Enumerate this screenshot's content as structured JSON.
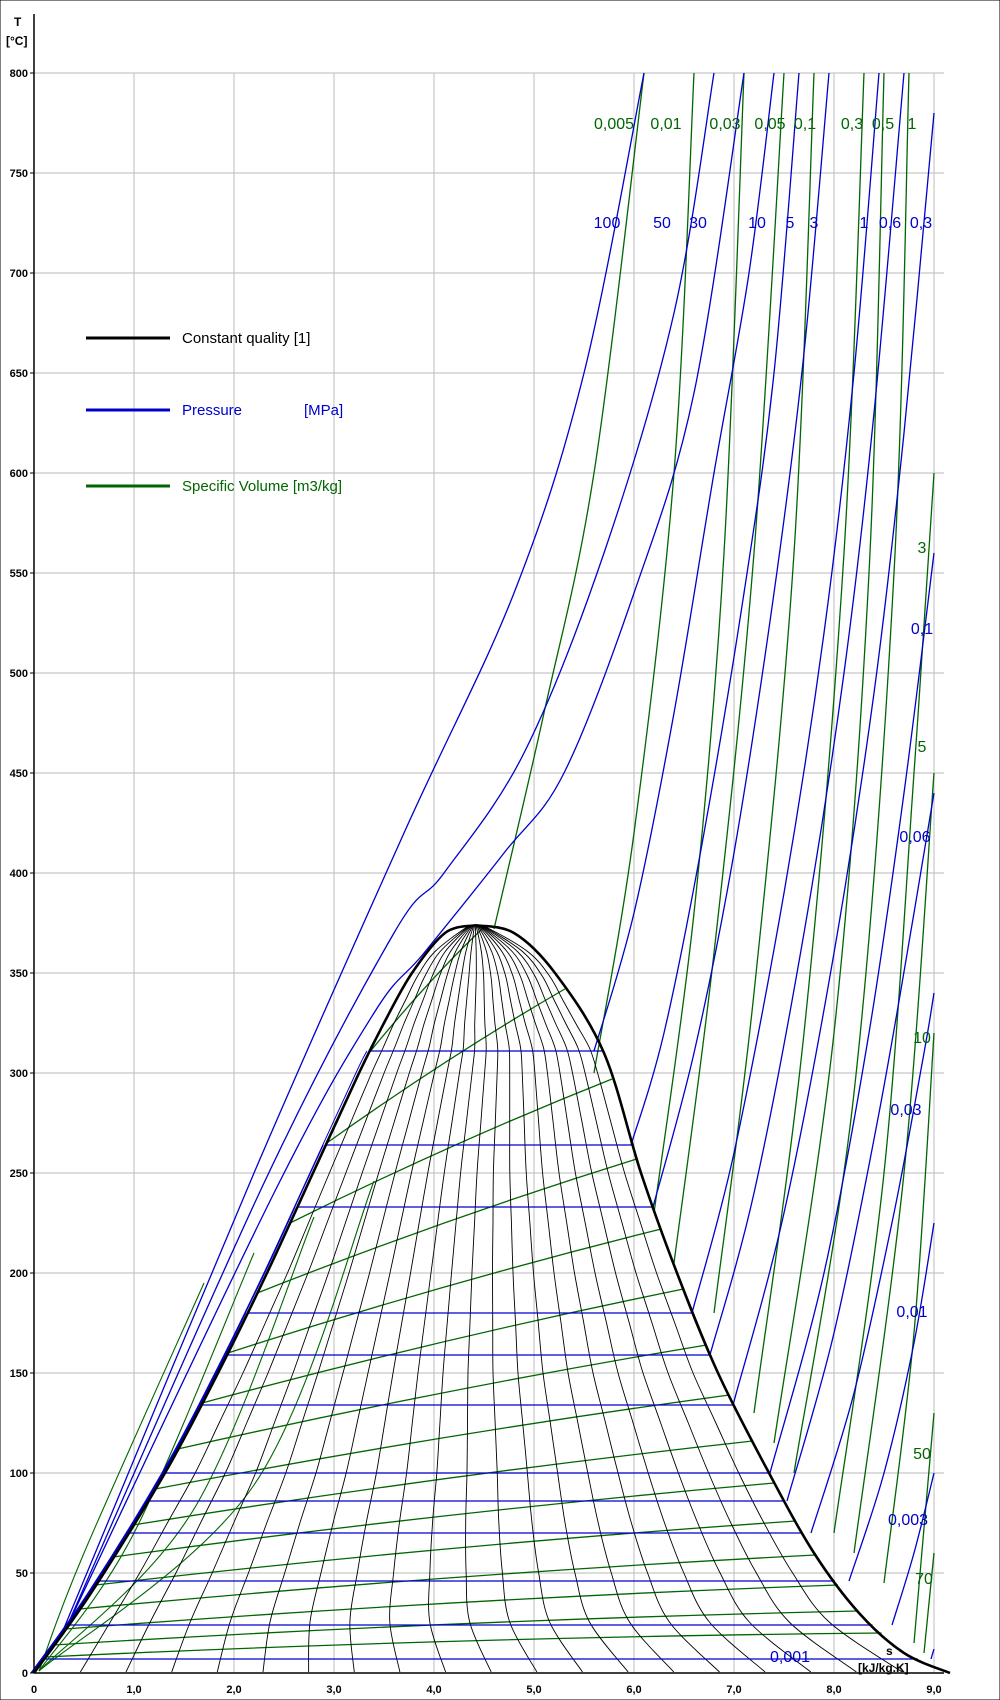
{
  "chart_data": {
    "type": "line",
    "title": "",
    "xlabel": "s",
    "xunit": "[kJ/kg.K]",
    "ylabel": "T",
    "yunit": "[°C]",
    "xlim": [
      0,
      9.0
    ],
    "ylim": [
      0,
      800
    ],
    "x_ticks": [
      "0",
      "1,0",
      "2,0",
      "3,0",
      "4,0",
      "5,0",
      "6,0",
      "7,0",
      "8,0",
      "9,0"
    ],
    "y_ticks": [
      "0",
      "50",
      "100",
      "150",
      "200",
      "250",
      "300",
      "350",
      "400",
      "450",
      "500",
      "550",
      "600",
      "650",
      "700",
      "750",
      "800"
    ],
    "grid": true,
    "legend_position": "upper-left",
    "legend": [
      {
        "label": "Constant quality [1]",
        "unit": "",
        "color": "#000000"
      },
      {
        "label": "Pressure",
        "unit": "[MPa]",
        "color": "#0000cc"
      },
      {
        "label": "Specific Volume [m3/kg]",
        "unit": "",
        "color": "#006600"
      }
    ],
    "saturation_dome": {
      "color": "#000000",
      "liquid": [
        [
          0,
          0.01
        ],
        [
          0.57,
          40
        ],
        [
          1.31,
          100
        ],
        [
          1.84,
          150
        ],
        [
          2.33,
          200
        ],
        [
          2.79,
          250
        ],
        [
          3.25,
          300
        ],
        [
          3.5,
          325
        ],
        [
          3.78,
          350
        ],
        [
          4.11,
          370
        ],
        [
          4.41,
          373.9
        ]
      ],
      "vapor": [
        [
          4.41,
          373.9
        ],
        [
          4.8,
          370
        ],
        [
          5.21,
          350
        ],
        [
          5.7,
          310
        ],
        [
          6.07,
          250
        ],
        [
          6.43,
          200
        ],
        [
          6.84,
          150
        ],
        [
          7.35,
          100
        ],
        [
          7.8,
          60
        ],
        [
          8.25,
          30
        ],
        [
          8.7,
          10
        ],
        [
          9.16,
          0.01
        ]
      ],
      "quality_lines": [
        0.05,
        0.1,
        0.15,
        0.2,
        0.25,
        0.3,
        0.35,
        0.4,
        0.45,
        0.5,
        0.55,
        0.6,
        0.65,
        0.7,
        0.75,
        0.8,
        0.85,
        0.9,
        0.95
      ]
    },
    "pressure_isobars": {
      "unit": "MPa",
      "color": "#0000cc",
      "labels_top": [
        "100",
        "50",
        "30",
        "10",
        "5",
        "3",
        "1",
        "0,6",
        "0,3"
      ],
      "labels_right": [
        "0,1",
        "0,06",
        "0,03",
        "0,01",
        "0,003",
        "0,001"
      ],
      "two_phase_T": [
        311,
        264,
        233,
        180,
        159,
        134,
        100,
        86,
        70,
        46,
        24,
        7
      ],
      "series": [
        {
          "name": "100",
          "points": [
            [
              0.28,
              20
            ],
            [
              2.2,
              250
            ],
            [
              3.7,
              420
            ],
            [
              4.8,
              540
            ],
            [
              5.5,
              650
            ],
            [
              6.1,
              800
            ]
          ]
        },
        {
          "name": "50",
          "points": [
            [
              0.3,
              20
            ],
            [
              2.3,
              245
            ],
            [
              3.6,
              370
            ],
            [
              4.1,
              400
            ],
            [
              4.9,
              460
            ],
            [
              5.7,
              560
            ],
            [
              6.4,
              680
            ],
            [
              6.8,
              800
            ]
          ]
        },
        {
          "name": "30",
          "points": [
            [
              0.3,
              20
            ],
            [
              2.4,
              240
            ],
            [
              3.4,
              330
            ],
            [
              3.9,
              360
            ],
            [
              4.7,
              410
            ],
            [
              5.3,
              450
            ],
            [
              6.0,
              540
            ],
            [
              6.6,
              640
            ],
            [
              7.1,
              800
            ]
          ]
        },
        {
          "name": "10",
          "points": [
            [
              5.6,
              311
            ],
            [
              6.0,
              380
            ],
            [
              6.4,
              480
            ],
            [
              6.8,
              600
            ],
            [
              7.15,
              700
            ],
            [
              7.4,
              800
            ]
          ]
        },
        {
          "name": "5",
          "points": [
            [
              5.97,
              264
            ],
            [
              6.3,
              320
            ],
            [
              6.7,
              420
            ],
            [
              7.1,
              540
            ],
            [
              7.4,
              650
            ],
            [
              7.65,
              800
            ]
          ]
        },
        {
          "name": "3",
          "points": [
            [
              6.19,
              233
            ],
            [
              6.6,
              310
            ],
            [
              7.0,
              410
            ],
            [
              7.4,
              540
            ],
            [
              7.7,
              660
            ],
            [
              7.95,
              800
            ]
          ]
        },
        {
          "name": "1",
          "points": [
            [
              6.58,
              180
            ],
            [
              7.0,
              260
            ],
            [
              7.5,
              390
            ],
            [
              7.9,
              520
            ],
            [
              8.2,
              650
            ],
            [
              8.45,
              800
            ]
          ]
        },
        {
          "name": "0,6",
          "points": [
            [
              6.76,
              159
            ],
            [
              7.2,
              240
            ],
            [
              7.7,
              370
            ],
            [
              8.1,
              500
            ],
            [
              8.4,
              630
            ],
            [
              8.7,
              800
            ]
          ]
        },
        {
          "name": "0,3",
          "points": [
            [
              6.99,
              134
            ],
            [
              7.5,
              230
            ],
            [
              8.0,
              360
            ],
            [
              8.4,
              490
            ],
            [
              8.7,
              620
            ],
            [
              9.0,
              780
            ]
          ]
        },
        {
          "name": "0,1",
          "points": [
            [
              7.36,
              100
            ],
            [
              7.9,
              200
            ],
            [
              8.35,
              320
            ],
            [
              8.7,
              440
            ],
            [
              9.0,
              560
            ]
          ]
        },
        {
          "name": "0,06",
          "points": [
            [
              7.53,
              86
            ],
            [
              8.0,
              170
            ],
            [
              8.45,
              280
            ],
            [
              8.8,
              380
            ],
            [
              9.0,
              440
            ]
          ]
        },
        {
          "name": "0,03",
          "points": [
            [
              7.77,
              70
            ],
            [
              8.2,
              140
            ],
            [
              8.6,
              230
            ],
            [
              8.9,
              310
            ],
            [
              9.0,
              340
            ]
          ]
        },
        {
          "name": "0,01",
          "points": [
            [
              8.15,
              46
            ],
            [
              8.5,
              100
            ],
            [
              8.8,
              165
            ],
            [
              9.0,
              225
            ]
          ]
        },
        {
          "name": "0,003",
          "points": [
            [
              8.58,
              24
            ],
            [
              8.8,
              60
            ],
            [
              9.0,
              100
            ]
          ]
        },
        {
          "name": "0,001",
          "points": [
            [
              8.97,
              7
            ],
            [
              9.0,
              12
            ]
          ]
        }
      ]
    },
    "volume_isochores": {
      "unit": "m3/kg",
      "color": "#006600",
      "labels_top": [
        "0,005",
        "0,01",
        "0,03",
        "0,05",
        "0,1",
        "0,3",
        "0,5",
        "1"
      ],
      "labels_right": [
        "3",
        "5",
        "10",
        "50",
        "70"
      ],
      "series": [
        {
          "name": "0,005",
          "points": [
            [
              4.6,
              372
            ],
            [
              5.1,
              480
            ],
            [
              5.6,
              600
            ],
            [
              6.1,
              800
            ]
          ]
        },
        {
          "name": "0,01",
          "points": [
            [
              5.6,
              300
            ],
            [
              6.0,
              420
            ],
            [
              6.4,
              600
            ],
            [
              6.6,
              800
            ]
          ]
        },
        {
          "name": "0,03",
          "points": [
            [
              6.2,
              230
            ],
            [
              6.6,
              380
            ],
            [
              6.9,
              560
            ],
            [
              7.1,
              800
            ]
          ]
        },
        {
          "name": "0,05",
          "points": [
            [
              6.4,
              205
            ],
            [
              6.8,
              360
            ],
            [
              7.2,
              560
            ],
            [
              7.5,
              800
            ]
          ]
        },
        {
          "name": "0,1",
          "points": [
            [
              6.8,
              180
            ],
            [
              7.2,
              340
            ],
            [
              7.6,
              560
            ],
            [
              7.8,
              800
            ]
          ]
        },
        {
          "name": "0,3",
          "points": [
            [
              7.2,
              130
            ],
            [
              7.7,
              320
            ],
            [
              8.1,
              560
            ],
            [
              8.3,
              800
            ]
          ]
        },
        {
          "name": "0,5",
          "points": [
            [
              7.4,
              115
            ],
            [
              8.0,
              320
            ],
            [
              8.35,
              550
            ],
            [
              8.5,
              800
            ]
          ]
        },
        {
          "name": "1",
          "points": [
            [
              7.6,
              100
            ],
            [
              8.2,
              290
            ],
            [
              8.6,
              550
            ],
            [
              8.75,
              800
            ]
          ]
        },
        {
          "name": "3",
          "points": [
            [
              8.0,
              70
            ],
            [
              8.5,
              250
            ],
            [
              8.8,
              450
            ],
            [
              9.0,
              600
            ]
          ]
        },
        {
          "name": "5",
          "points": [
            [
              8.2,
              60
            ],
            [
              8.7,
              250
            ],
            [
              9.0,
              450
            ]
          ]
        },
        {
          "name": "10",
          "points": [
            [
              8.5,
              45
            ],
            [
              8.8,
              170
            ],
            [
              9.0,
              320
            ]
          ]
        },
        {
          "name": "50",
          "points": [
            [
              8.8,
              15
            ],
            [
              9.0,
              130
            ]
          ]
        },
        {
          "name": "70",
          "points": [
            [
              8.9,
              10
            ],
            [
              9.0,
              60
            ]
          ]
        }
      ]
    }
  }
}
